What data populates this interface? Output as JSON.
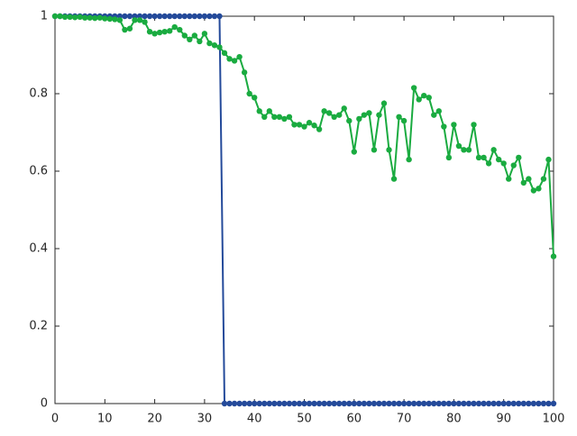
{
  "chart_data": {
    "type": "line",
    "x": [
      0,
      1,
      2,
      3,
      4,
      5,
      6,
      7,
      8,
      9,
      10,
      11,
      12,
      13,
      14,
      15,
      16,
      17,
      18,
      19,
      20,
      21,
      22,
      23,
      24,
      25,
      26,
      27,
      28,
      29,
      30,
      31,
      32,
      33,
      34,
      35,
      36,
      37,
      38,
      39,
      40,
      41,
      42,
      43,
      44,
      45,
      46,
      47,
      48,
      49,
      50,
      51,
      52,
      53,
      54,
      55,
      56,
      57,
      58,
      59,
      60,
      61,
      62,
      63,
      64,
      65,
      66,
      67,
      68,
      69,
      70,
      71,
      72,
      73,
      74,
      75,
      76,
      77,
      78,
      79,
      80,
      81,
      82,
      83,
      84,
      85,
      86,
      87,
      88,
      89,
      90,
      91,
      92,
      93,
      94,
      95,
      96,
      97,
      98,
      99,
      100
    ],
    "series": [
      {
        "color": "#244a9a",
        "values": [
          1,
          1,
          1,
          1,
          1,
          1,
          1,
          1,
          1,
          1,
          1,
          1,
          1,
          1,
          1,
          1,
          1,
          1,
          1,
          1,
          1,
          1,
          1,
          1,
          1,
          1,
          1,
          1,
          1,
          1,
          1,
          1,
          1,
          1,
          0,
          0,
          0,
          0,
          0,
          0,
          0,
          0,
          0,
          0,
          0,
          0,
          0,
          0,
          0,
          0,
          0,
          0,
          0,
          0,
          0,
          0,
          0,
          0,
          0,
          0,
          0,
          0,
          0,
          0,
          0,
          0,
          0,
          0,
          0,
          0,
          0,
          0,
          0,
          0,
          0,
          0,
          0,
          0,
          0,
          0,
          0,
          0,
          0,
          0,
          0,
          0,
          0,
          0,
          0,
          0,
          0,
          0,
          0,
          0,
          0,
          0,
          0,
          0,
          0,
          0,
          0
        ]
      },
      {
        "color": "#1aab40",
        "values": [
          1,
          1,
          0.998,
          0.998,
          0.997,
          0.998,
          0.996,
          0.996,
          0.995,
          0.996,
          0.994,
          0.993,
          0.992,
          0.99,
          0.965,
          0.968,
          0.99,
          0.99,
          0.985,
          0.96,
          0.955,
          0.958,
          0.96,
          0.962,
          0.972,
          0.965,
          0.95,
          0.94,
          0.95,
          0.935,
          0.955,
          0.93,
          0.925,
          0.92,
          0.905,
          0.89,
          0.885,
          0.895,
          0.855,
          0.8,
          0.79,
          0.755,
          0.74,
          0.755,
          0.74,
          0.74,
          0.735,
          0.74,
          0.72,
          0.72,
          0.715,
          0.725,
          0.718,
          0.708,
          0.755,
          0.75,
          0.74,
          0.745,
          0.762,
          0.73,
          0.65,
          0.735,
          0.745,
          0.75,
          0.655,
          0.745,
          0.775,
          0.655,
          0.58,
          0.74,
          0.73,
          0.63,
          0.815,
          0.785,
          0.795,
          0.79,
          0.745,
          0.755,
          0.715,
          0.635,
          0.72,
          0.665,
          0.655,
          0.655,
          0.72,
          0.635,
          0.635,
          0.62,
          0.655,
          0.63,
          0.62,
          0.58,
          0.615,
          0.635,
          0.57,
          0.58,
          0.55,
          0.555,
          0.58,
          0.63,
          0.38
        ]
      }
    ],
    "xlim": [
      0,
      100
    ],
    "xticks": [
      0,
      10,
      20,
      30,
      40,
      50,
      60,
      70,
      80,
      90,
      100
    ],
    "ylim": [
      0,
      1
    ],
    "yticks": [
      0,
      0.2,
      0.4,
      0.6,
      0.8,
      1
    ],
    "grid": false
  }
}
